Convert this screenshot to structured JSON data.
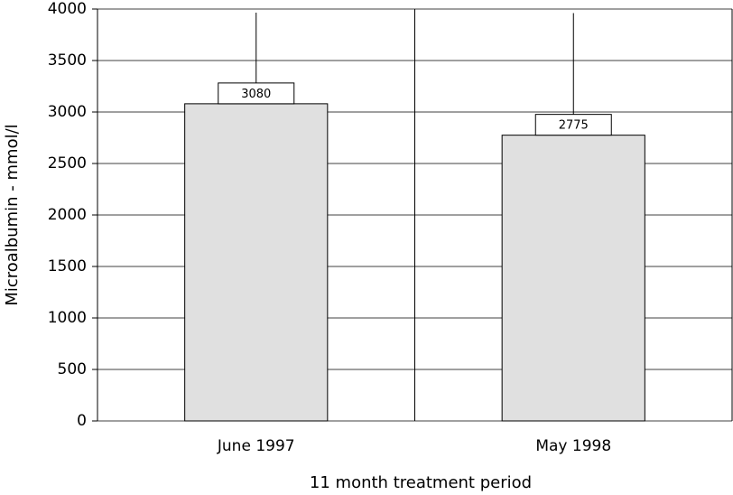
{
  "chart_data": {
    "type": "bar",
    "categories": [
      "June 1997",
      "May 1998"
    ],
    "values": [
      3080,
      2775
    ],
    "errors": [
      885,
      1185
    ],
    "color": "#e0e0e0",
    "xlabel": "11 month treatment period",
    "ylabel": "Microalbumin - mmol/l",
    "ylim": [
      0,
      4000
    ],
    "yticks": [
      0,
      500,
      1000,
      1500,
      2000,
      2500,
      3000,
      3500,
      4000
    ],
    "grid": true
  }
}
